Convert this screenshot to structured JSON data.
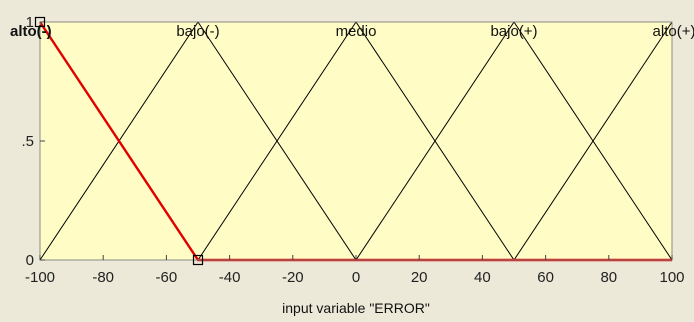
{
  "chart_data": {
    "type": "line",
    "title": "",
    "xlabel": "input variable \"ERROR\"",
    "ylabel": "",
    "xlim": [
      -100,
      100
    ],
    "ylim": [
      0,
      1
    ],
    "x_ticks": [
      -100,
      -80,
      -60,
      -40,
      -20,
      0,
      20,
      40,
      60,
      80,
      100
    ],
    "x_tick_labels": [
      "-100",
      "-80",
      "-60",
      "-40",
      "-20",
      "0",
      "20",
      "40",
      "60",
      "80",
      "100"
    ],
    "y_ticks": [
      0,
      0.5,
      1
    ],
    "y_tick_labels": [
      "0",
      ".5",
      "1"
    ],
    "grid": false,
    "selected_series": "alto(-)",
    "colors": {
      "plot_bg": "#fffcc6",
      "window_bg": "#ece9d8",
      "line": "#000000",
      "selected": "#e00000"
    },
    "series": [
      {
        "name": "alto(-)",
        "points": [
          [
            -100,
            1
          ],
          [
            -50,
            0
          ],
          [
            100,
            0
          ]
        ],
        "selected": true
      },
      {
        "name": "bajo(-)",
        "points": [
          [
            -100,
            0
          ],
          [
            -50,
            1
          ],
          [
            0,
            0
          ]
        ]
      },
      {
        "name": "medio",
        "points": [
          [
            -50,
            0
          ],
          [
            0,
            1
          ],
          [
            50,
            0
          ]
        ]
      },
      {
        "name": "bajo(+)",
        "points": [
          [
            0,
            0
          ],
          [
            50,
            1
          ],
          [
            100,
            0
          ]
        ]
      },
      {
        "name": "alto(+)",
        "points": [
          [
            50,
            0
          ],
          [
            100,
            1
          ]
        ]
      }
    ],
    "labels": [
      {
        "series": "alto(-)",
        "text": "alto(-)",
        "x": -100
      },
      {
        "series": "bajo(-)",
        "text": "bajo(-)",
        "x": -50
      },
      {
        "series": "medio",
        "text": "medio",
        "x": 0
      },
      {
        "series": "bajo(+)",
        "text": "bajo(+)",
        "x": 50
      },
      {
        "series": "alto(+)",
        "text": "alto(+)",
        "x": 100
      }
    ],
    "markers": [
      {
        "x": -100,
        "y": 1
      },
      {
        "x": -50,
        "y": 0
      }
    ]
  }
}
